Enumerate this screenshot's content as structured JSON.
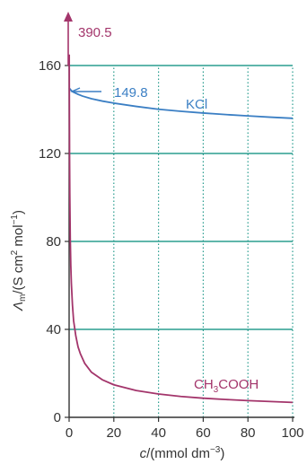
{
  "chart_data": {
    "type": "line",
    "xlabel": {
      "prefix": "c",
      "main": "/(mmol dm",
      "sup": "−3",
      "suffix": ")"
    },
    "ylabel": {
      "prefix": "Λ",
      "sub": "m",
      "main": "/(S cm",
      "sup1": "2",
      "mid": " mol",
      "sup2": "−1",
      "suffix": ")"
    },
    "xlim": [
      0,
      100
    ],
    "ylim": [
      0,
      165
    ],
    "xticks": [
      0,
      20,
      40,
      60,
      80,
      100
    ],
    "yticks": [
      0,
      40,
      80,
      120,
      160
    ],
    "grid": {
      "horizontal": "solid teal at y-ticks",
      "vertical": "dotted teal at x-ticks"
    },
    "colors": {
      "grid": "#2a9d8f",
      "kcl": "#3b7fc4",
      "acetic": "#a3356b",
      "axis": "#333333"
    },
    "series": [
      {
        "name": "KCl",
        "name_parts": {
          "main": "KCl"
        },
        "color": "#3b7fc4",
        "x": [
          0,
          1,
          2,
          4,
          6,
          10,
          15,
          20,
          30,
          40,
          50,
          60,
          70,
          80,
          90,
          100
        ],
        "y": [
          149.8,
          148.6,
          147.9,
          146.9,
          146.1,
          144.9,
          143.8,
          142.9,
          141.4,
          140.1,
          139.2,
          138.4,
          137.7,
          137.1,
          136.5,
          136.0
        ]
      },
      {
        "name": "CH3COOH",
        "name_parts": {
          "a": "CH",
          "sub": "3",
          "b": "COOH"
        },
        "color": "#a3356b",
        "x": [
          0.05,
          0.1,
          0.2,
          0.3,
          0.5,
          0.75,
          1,
          1.5,
          2,
          3,
          4,
          5,
          7,
          10,
          15,
          20,
          30,
          40,
          50,
          60,
          70,
          80,
          90,
          100
        ],
        "y": [
          165,
          147,
          118,
          102,
          82,
          69,
          61,
          51,
          44,
          37,
          32,
          29,
          24.5,
          20.5,
          17,
          14.8,
          12.2,
          10.6,
          9.5,
          8.7,
          8.1,
          7.6,
          7.2,
          6.8
        ]
      }
    ],
    "annotations": [
      {
        "text": "390.5",
        "x": 0,
        "y": 390.5,
        "series": "CH3COOH",
        "arrow": "up"
      },
      {
        "text": "149.8",
        "x": 0,
        "y": 149.8,
        "series": "KCl",
        "arrow": "left"
      }
    ]
  }
}
